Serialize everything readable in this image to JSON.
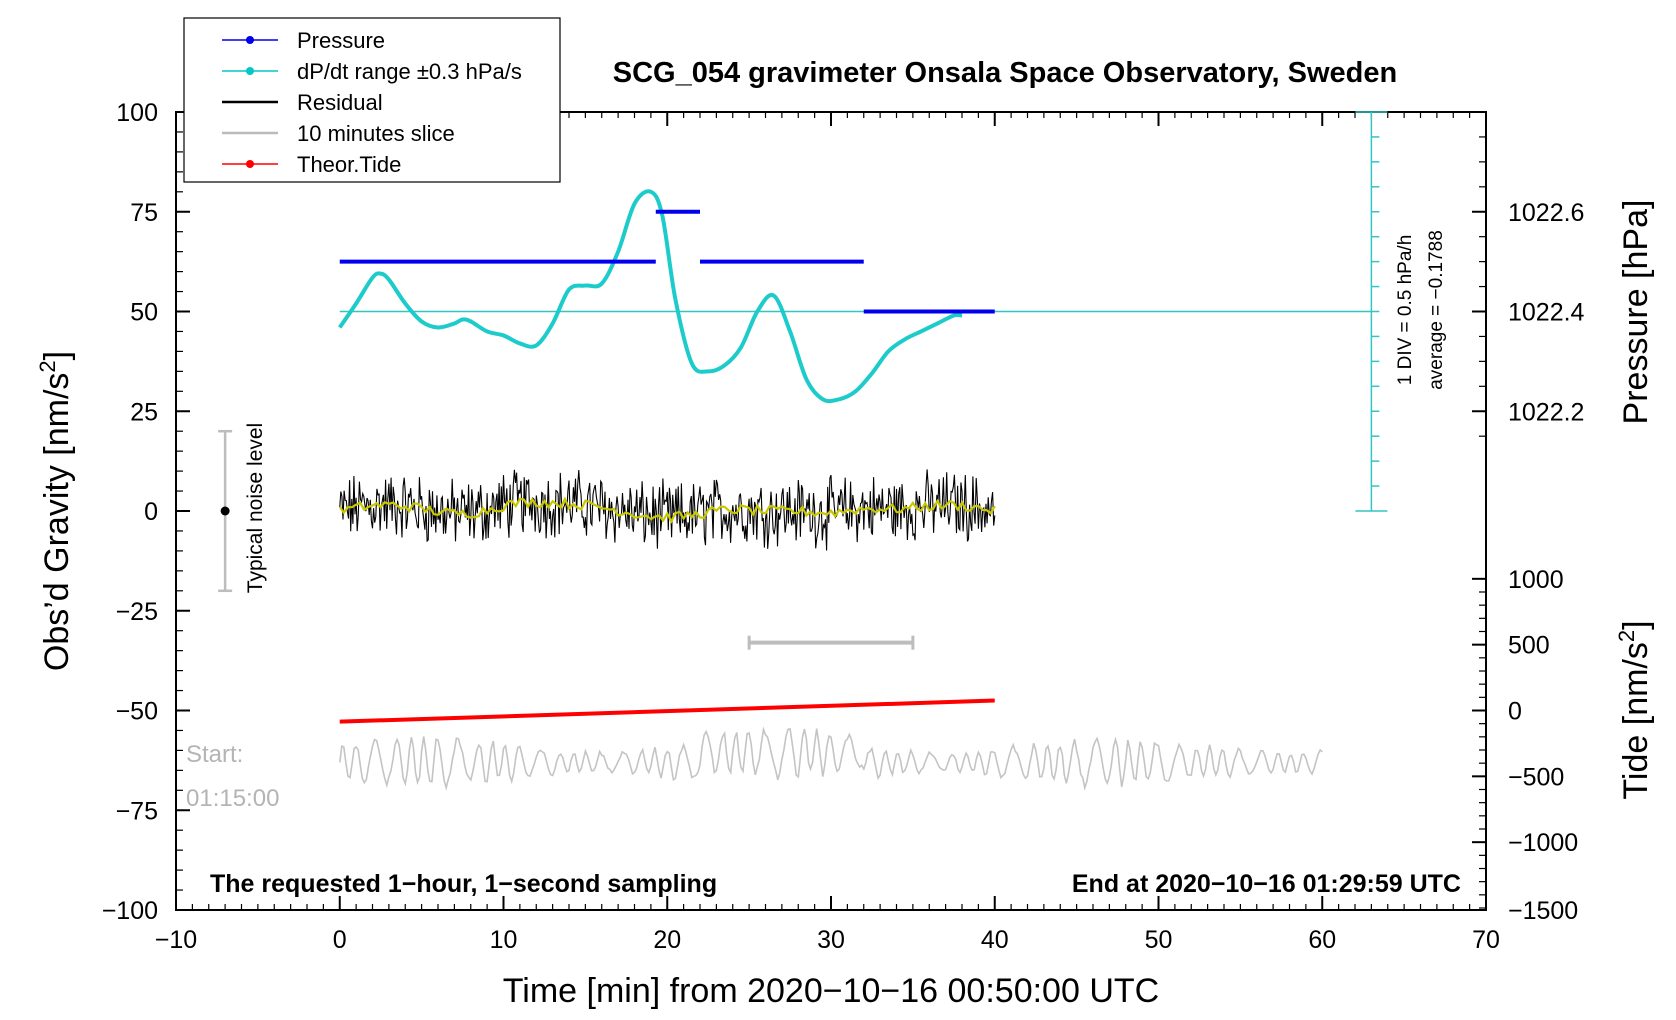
{
  "chart_data": {
    "type": "line",
    "title": "SCG_054 gravimeter Onsala Space Observatory, Sweden",
    "xlabel": "Time [min] from 2020−10−16 00:50:00 UTC",
    "ylabel_left": "Obs’d Gravity [nm/s",
    "ylabel_left_sup": "2",
    "ylabel_left_end": "]",
    "ylabel_right_top": "Pressure [hPa]",
    "ylabel_right_bottom": "Tide [nm/s",
    "ylabel_right_bottom_sup": "2",
    "ylabel_right_bottom_end": "]",
    "xlim": [
      -10,
      70
    ],
    "ylim_left": [
      -100,
      100
    ],
    "x_ticks": [
      -10,
      0,
      10,
      20,
      30,
      40,
      50,
      60,
      70
    ],
    "x_tick_labels": [
      "−10",
      "0",
      "10",
      "20",
      "30",
      "40",
      "50",
      "60",
      "70"
    ],
    "y_ticks_left": [
      100,
      75,
      50,
      25,
      0,
      -25,
      -50,
      -75,
      -100
    ],
    "y_tick_labels_left": [
      "100",
      "75",
      "50",
      "25",
      "0",
      "−25",
      "−50",
      "−75",
      "−100"
    ],
    "pressure_axis": {
      "ticks": [
        {
          "value": 1022.6,
          "label": "1022.6",
          "y": 75
        },
        {
          "value": 1022.4,
          "label": "1022.4",
          "y": 50
        },
        {
          "value": 1022.2,
          "label": "1022.2",
          "y": 25
        }
      ]
    },
    "tide_axis": {
      "ticks": [
        {
          "value": 1000,
          "label": "1000",
          "y": -17
        },
        {
          "value": 500,
          "label": "500",
          "y": -33.5
        },
        {
          "value": 0,
          "label": "0",
          "y": -50
        },
        {
          "value": -500,
          "label": "−500",
          "y": -66.5
        },
        {
          "value": -1000,
          "label": "−1000",
          "y": -83
        },
        {
          "value": -1500,
          "label": "−1500",
          "y": -100
        }
      ]
    },
    "legend": [
      {
        "label": "Pressure",
        "color": "#0000ee",
        "marker": true
      },
      {
        "label": "dP/dt range ±0.3 hPa/s",
        "color": "#00c8c8",
        "marker": true
      },
      {
        "label": "Residual",
        "color": "#000000",
        "marker": false
      },
      {
        "label": "10 minutes slice",
        "color": "#bbbbbb",
        "marker": false
      },
      {
        "label": "Theor.Tide",
        "color": "#ff0000",
        "marker": true
      }
    ],
    "series": {
      "pressure_steps": [
        {
          "x0": 0,
          "x1": 19.3,
          "y": 62.5
        },
        {
          "x0": 19.3,
          "x1": 22,
          "y": 75
        },
        {
          "x0": 22,
          "x1": 32,
          "y": 62.5
        },
        {
          "x0": 32,
          "x1": 40,
          "y": 50
        }
      ],
      "dpdt": {
        "x": [
          0,
          1,
          2,
          2.5,
          3,
          4,
          5,
          6,
          7,
          7.5,
          8,
          9,
          10,
          11,
          12,
          13,
          14,
          15,
          16,
          17,
          18,
          19,
          19.7,
          20.5,
          21.5,
          22.5,
          23.5,
          24.5,
          25.5,
          26.5,
          27.5,
          28.5,
          29.5,
          30.5,
          31.5,
          32.5,
          33.5,
          34.5,
          35.5,
          36.5,
          37.5,
          38
        ],
        "y": [
          46,
          52,
          58.5,
          59.5,
          58,
          52,
          47.5,
          46,
          47,
          48,
          47.5,
          45,
          44,
          42,
          41.5,
          47,
          55.5,
          56.5,
          57,
          65,
          77,
          80,
          74,
          53,
          37,
          35,
          36.5,
          41,
          50,
          54,
          45,
          33,
          28,
          28,
          30,
          34.5,
          40,
          43,
          45,
          47,
          49,
          49
        ]
      },
      "average_line_y": 50,
      "residual_x_range": [
        0,
        40
      ],
      "theor_tide": {
        "x": [
          0,
          40
        ],
        "y": [
          -52.8,
          -47.5
        ]
      },
      "ten_minute_slice": {
        "x0": 25,
        "x1": 35,
        "y": -33
      },
      "slice_trace_x_range": [
        0,
        60
      ],
      "slice_trace_y_center": -63,
      "noise_bar": {
        "x": -7,
        "y_low": -20,
        "y_high": 20,
        "y_mid": 0
      },
      "scale_bar": {
        "x": 63,
        "y_top": 100,
        "y_bottom": 0
      }
    },
    "annotations": {
      "noise_label": "Typical noise level",
      "div_label": "1 DIV = 0.5 hPa/h",
      "average_label": "average = −0.1788",
      "start_label": "Start:",
      "start_time": "01:15:00",
      "bottom_left_note": "The requested 1−hour, 1−second sampling",
      "bottom_right_note": "End at 2020−10−16 01:29:59 UTC"
    }
  }
}
